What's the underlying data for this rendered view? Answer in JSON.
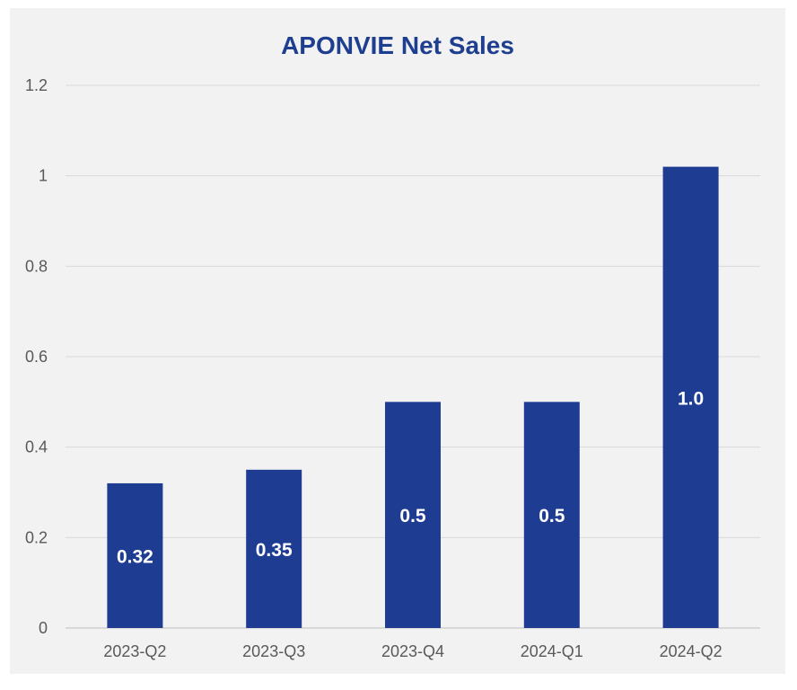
{
  "chart_data": {
    "type": "bar",
    "title": "APONVIE Net Sales",
    "categories": [
      "2023-Q2",
      "2023-Q3",
      "2023-Q4",
      "2024-Q1",
      "2024-Q2"
    ],
    "values": [
      0.32,
      0.35,
      0.5,
      0.5,
      1.02
    ],
    "data_labels": [
      "0.32",
      "0.35",
      "0.5",
      "0.5",
      "1.0"
    ],
    "xlabel": "",
    "ylabel": "",
    "ylim": [
      0,
      1.2
    ],
    "y_ticks": [
      "0",
      "0.2",
      "0.4",
      "0.6",
      "0.8",
      "1",
      "1.2"
    ],
    "y_tick_values": [
      0,
      0.2,
      0.4,
      0.6,
      0.8,
      1,
      1.2
    ],
    "grid": true,
    "legend": "none",
    "colors": {
      "bar": "#1f3c93",
      "title": "#1e3e8f",
      "grid": "#d9d9d9",
      "background": "#f2f2f2",
      "bar_label": "#ffffff",
      "tick": "#595959"
    }
  }
}
